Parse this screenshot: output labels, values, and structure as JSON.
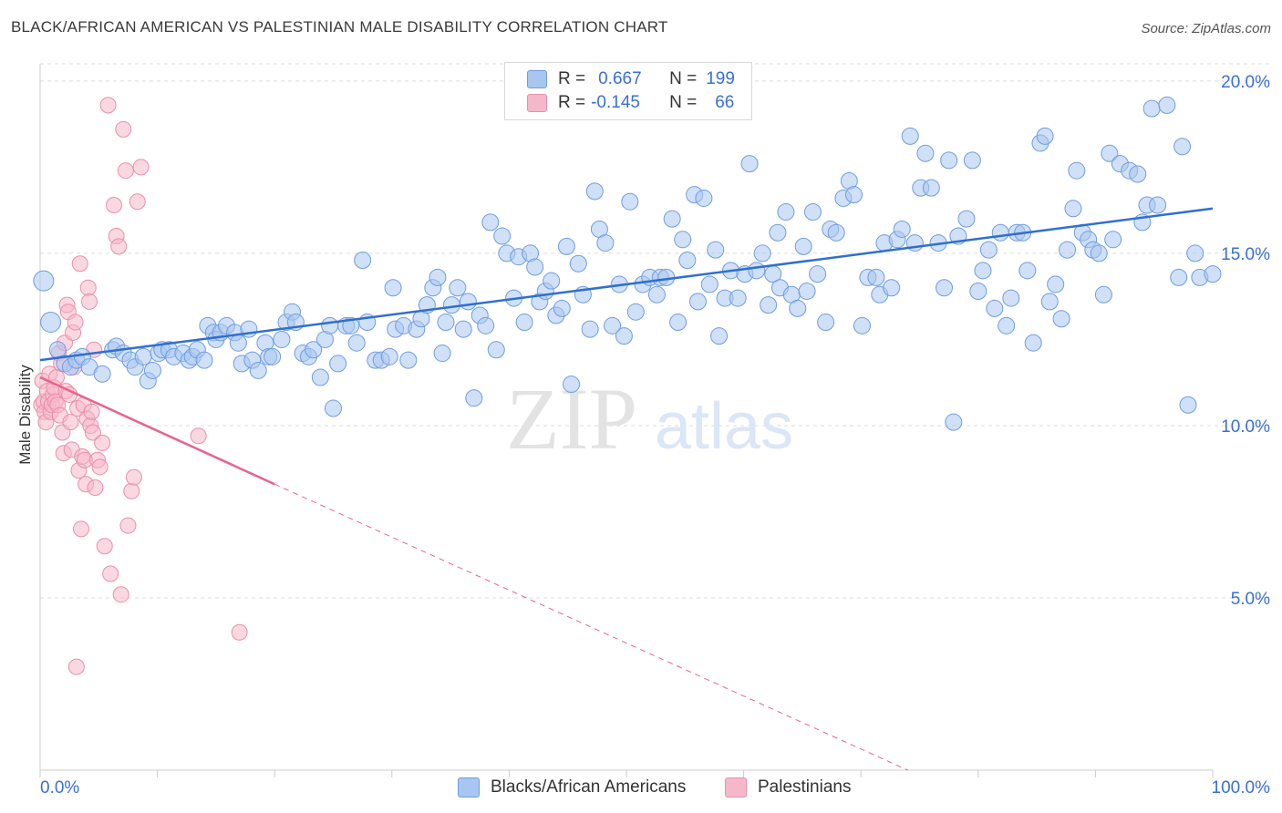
{
  "title": "BLACK/AFRICAN AMERICAN VS PALESTINIAN MALE DISABILITY CORRELATION CHART",
  "source": "Source: ZipAtlas.com",
  "watermark": {
    "zip": "ZIP",
    "atlas": "atlas"
  },
  "legend": {
    "rows": [
      {
        "r_label": "R =",
        "r_value": "0.667",
        "n_label": "N =",
        "n_value": "199",
        "color": "#a9c6f0"
      },
      {
        "r_label": "R =",
        "r_value": "-0.145",
        "n_label": "N =",
        "n_value": "66",
        "color": "#f5b8cb"
      }
    ]
  },
  "bottom_legend": [
    {
      "label": "Blacks/African Americans",
      "color": "#a9c6f0"
    },
    {
      "label": "Palestinians",
      "color": "#f5b8cb"
    }
  ],
  "colors": {
    "blue_fill": "#a9c6f0",
    "blue_stroke": "#6f9de0",
    "blue_line": "#2f6fd0",
    "pink_fill": "#f5b8cb",
    "pink_stroke": "#ea8fab",
    "pink_line": "#e8638e",
    "tick_label": "#3a6fd8",
    "grid": "#dddddd"
  },
  "chart_data": {
    "type": "scatter",
    "title": "BLACK/AFRICAN AMERICAN VS PALESTINIAN MALE DISABILITY CORRELATION CHART",
    "xlabel": "",
    "ylabel": "Male Disability",
    "xlim": [
      0,
      100
    ],
    "ylim": [
      0,
      20.5
    ],
    "x_tick_labels": [
      "0.0%",
      "100.0%"
    ],
    "y_ticks": [
      5,
      10,
      15,
      20
    ],
    "y_tick_labels": [
      "5.0%",
      "10.0%",
      "15.0%",
      "20.0%"
    ],
    "grid": true,
    "legend_position": "top-center",
    "series": [
      {
        "name": "Blacks/African Americans",
        "r": 0.667,
        "n": 199,
        "trend": {
          "x0": 0,
          "y0": 11.9,
          "x1": 100,
          "y1": 16.3
        },
        "points": [
          [
            0.3,
            14.2
          ],
          [
            0.9,
            13.0
          ],
          [
            1.5,
            12.2
          ],
          [
            2.1,
            11.8
          ],
          [
            2.6,
            11.7
          ],
          [
            3.1,
            11.9
          ],
          [
            3.6,
            12.0
          ],
          [
            4.2,
            11.7
          ],
          [
            5.3,
            11.5
          ],
          [
            6.2,
            12.2
          ],
          [
            6.5,
            12.3
          ],
          [
            7.1,
            12.1
          ],
          [
            7.7,
            11.9
          ],
          [
            8.1,
            11.7
          ],
          [
            8.8,
            12.0
          ],
          [
            9.2,
            11.3
          ],
          [
            9.6,
            11.6
          ],
          [
            10.1,
            12.1
          ],
          [
            10.4,
            12.2
          ],
          [
            11.0,
            12.2
          ],
          [
            11.4,
            12.0
          ],
          [
            12.2,
            12.1
          ],
          [
            12.7,
            11.9
          ],
          [
            13.0,
            12.0
          ],
          [
            13.4,
            12.2
          ],
          [
            14.0,
            11.9
          ],
          [
            14.3,
            12.9
          ],
          [
            14.8,
            12.7
          ],
          [
            15.0,
            12.5
          ],
          [
            15.4,
            12.7
          ],
          [
            15.9,
            12.9
          ],
          [
            16.6,
            12.7
          ],
          [
            16.9,
            12.4
          ],
          [
            17.2,
            11.8
          ],
          [
            17.8,
            12.8
          ],
          [
            18.1,
            11.9
          ],
          [
            18.6,
            11.6
          ],
          [
            19.2,
            12.4
          ],
          [
            19.5,
            12.0
          ],
          [
            19.8,
            12.0
          ],
          [
            20.6,
            12.5
          ],
          [
            21.0,
            13.0
          ],
          [
            21.5,
            13.3
          ],
          [
            21.8,
            13.0
          ],
          [
            22.4,
            12.1
          ],
          [
            22.9,
            12.0
          ],
          [
            23.3,
            12.2
          ],
          [
            23.9,
            11.4
          ],
          [
            24.3,
            12.5
          ],
          [
            24.7,
            12.9
          ],
          [
            25.0,
            10.5
          ],
          [
            25.4,
            11.8
          ],
          [
            26.1,
            12.9
          ],
          [
            26.5,
            12.9
          ],
          [
            27.0,
            12.4
          ],
          [
            27.5,
            14.8
          ],
          [
            27.9,
            13.0
          ],
          [
            28.6,
            11.9
          ],
          [
            29.1,
            11.9
          ],
          [
            29.8,
            12.0
          ],
          [
            30.1,
            14.0
          ],
          [
            30.3,
            12.8
          ],
          [
            31.0,
            12.9
          ],
          [
            31.4,
            11.9
          ],
          [
            32.1,
            12.8
          ],
          [
            32.5,
            13.1
          ],
          [
            33.0,
            13.5
          ],
          [
            33.5,
            14.0
          ],
          [
            33.9,
            14.3
          ],
          [
            34.3,
            12.1
          ],
          [
            34.6,
            13.0
          ],
          [
            35.1,
            13.5
          ],
          [
            35.6,
            14.0
          ],
          [
            36.1,
            12.8
          ],
          [
            36.5,
            13.6
          ],
          [
            37.0,
            10.8
          ],
          [
            37.5,
            13.2
          ],
          [
            38.0,
            12.9
          ],
          [
            38.4,
            15.9
          ],
          [
            38.9,
            12.2
          ],
          [
            39.4,
            15.5
          ],
          [
            39.8,
            15.0
          ],
          [
            40.4,
            13.7
          ],
          [
            40.8,
            14.9
          ],
          [
            41.3,
            13.0
          ],
          [
            41.8,
            15.0
          ],
          [
            42.2,
            14.6
          ],
          [
            42.6,
            13.6
          ],
          [
            43.1,
            13.9
          ],
          [
            43.6,
            14.2
          ],
          [
            44.0,
            13.2
          ],
          [
            44.5,
            13.4
          ],
          [
            44.9,
            15.2
          ],
          [
            45.3,
            11.2
          ],
          [
            45.9,
            14.7
          ],
          [
            46.3,
            13.8
          ],
          [
            46.9,
            12.8
          ],
          [
            47.3,
            16.8
          ],
          [
            47.7,
            15.7
          ],
          [
            48.2,
            15.3
          ],
          [
            48.8,
            12.9
          ],
          [
            49.4,
            14.1
          ],
          [
            49.8,
            12.6
          ],
          [
            50.3,
            16.5
          ],
          [
            50.8,
            13.3
          ],
          [
            51.4,
            14.1
          ],
          [
            52.0,
            14.3
          ],
          [
            52.6,
            13.8
          ],
          [
            52.9,
            14.3
          ],
          [
            53.4,
            14.3
          ],
          [
            53.9,
            16.0
          ],
          [
            54.4,
            13.0
          ],
          [
            54.8,
            15.4
          ],
          [
            55.2,
            14.8
          ],
          [
            55.8,
            16.7
          ],
          [
            56.1,
            13.6
          ],
          [
            56.6,
            16.6
          ],
          [
            57.1,
            14.1
          ],
          [
            57.6,
            15.1
          ],
          [
            57.9,
            12.6
          ],
          [
            58.4,
            13.7
          ],
          [
            58.9,
            14.5
          ],
          [
            59.5,
            13.7
          ],
          [
            60.1,
            14.4
          ],
          [
            60.5,
            17.6
          ],
          [
            61.1,
            14.5
          ],
          [
            61.6,
            15.0
          ],
          [
            62.1,
            13.5
          ],
          [
            62.5,
            14.4
          ],
          [
            62.9,
            15.6
          ],
          [
            63.1,
            14.0
          ],
          [
            63.6,
            16.2
          ],
          [
            64.1,
            13.8
          ],
          [
            64.6,
            13.4
          ],
          [
            65.1,
            15.2
          ],
          [
            65.4,
            13.9
          ],
          [
            65.9,
            16.2
          ],
          [
            66.3,
            14.4
          ],
          [
            67.0,
            13.0
          ],
          [
            67.4,
            15.7
          ],
          [
            67.9,
            15.6
          ],
          [
            68.5,
            16.6
          ],
          [
            69.0,
            17.1
          ],
          [
            69.4,
            16.7
          ],
          [
            70.1,
            12.9
          ],
          [
            70.6,
            14.3
          ],
          [
            71.3,
            14.3
          ],
          [
            71.6,
            13.8
          ],
          [
            72.0,
            15.3
          ],
          [
            72.6,
            14.0
          ],
          [
            73.1,
            15.4
          ],
          [
            73.5,
            15.7
          ],
          [
            74.2,
            18.4
          ],
          [
            74.6,
            15.3
          ],
          [
            75.1,
            16.9
          ],
          [
            75.5,
            17.9
          ],
          [
            76.0,
            16.9
          ],
          [
            76.6,
            15.3
          ],
          [
            77.1,
            14.0
          ],
          [
            77.5,
            17.7
          ],
          [
            77.9,
            10.1
          ],
          [
            78.3,
            15.5
          ],
          [
            79.0,
            16.0
          ],
          [
            79.5,
            17.7
          ],
          [
            80.0,
            13.9
          ],
          [
            80.4,
            14.5
          ],
          [
            80.9,
            15.1
          ],
          [
            81.4,
            13.4
          ],
          [
            81.9,
            15.6
          ],
          [
            82.4,
            12.9
          ],
          [
            82.8,
            13.7
          ],
          [
            83.3,
            15.6
          ],
          [
            83.8,
            15.6
          ],
          [
            84.2,
            14.5
          ],
          [
            84.7,
            12.4
          ],
          [
            85.3,
            18.2
          ],
          [
            85.7,
            18.4
          ],
          [
            86.1,
            13.6
          ],
          [
            86.6,
            14.1
          ],
          [
            87.1,
            13.1
          ],
          [
            87.6,
            15.1
          ],
          [
            88.1,
            16.3
          ],
          [
            88.4,
            17.4
          ],
          [
            88.9,
            15.6
          ],
          [
            89.4,
            15.4
          ],
          [
            89.8,
            15.1
          ],
          [
            90.3,
            15.0
          ],
          [
            90.7,
            13.8
          ],
          [
            91.2,
            17.9
          ],
          [
            91.5,
            15.4
          ],
          [
            92.1,
            17.6
          ],
          [
            92.9,
            17.4
          ],
          [
            93.6,
            17.3
          ],
          [
            94.0,
            15.9
          ],
          [
            94.4,
            16.4
          ],
          [
            94.8,
            19.2
          ],
          [
            95.3,
            16.4
          ],
          [
            96.1,
            19.3
          ],
          [
            97.1,
            14.3
          ],
          [
            97.4,
            18.1
          ],
          [
            97.9,
            10.6
          ],
          [
            98.5,
            15.0
          ],
          [
            98.9,
            14.3
          ],
          [
            100.0,
            14.4
          ]
        ]
      },
      {
        "name": "Palestinians",
        "r": -0.145,
        "n": 66,
        "trend": {
          "x0": 0,
          "y0": 11.4,
          "x1": 20,
          "y1": 8.3,
          "dashed_to_x": 74,
          "dashed_to_y": 0.0
        },
        "points": [
          [
            0.1,
            10.6
          ],
          [
            0.2,
            11.3
          ],
          [
            0.3,
            10.7
          ],
          [
            0.4,
            10.4
          ],
          [
            0.5,
            10.1
          ],
          [
            0.6,
            11.0
          ],
          [
            0.7,
            10.7
          ],
          [
            0.8,
            11.5
          ],
          [
            0.9,
            10.4
          ],
          [
            1.0,
            10.6
          ],
          [
            1.1,
            10.9
          ],
          [
            1.2,
            11.1
          ],
          [
            1.3,
            10.7
          ],
          [
            1.4,
            11.4
          ],
          [
            1.5,
            10.6
          ],
          [
            1.6,
            12.1
          ],
          [
            1.7,
            10.3
          ],
          [
            1.8,
            11.8
          ],
          [
            1.9,
            9.8
          ],
          [
            2.0,
            9.2
          ],
          [
            2.1,
            12.4
          ],
          [
            2.2,
            11.0
          ],
          [
            2.3,
            13.5
          ],
          [
            2.4,
            13.3
          ],
          [
            2.5,
            10.9
          ],
          [
            2.6,
            10.1
          ],
          [
            2.7,
            9.3
          ],
          [
            2.8,
            12.7
          ],
          [
            2.9,
            11.7
          ],
          [
            3.0,
            13.0
          ],
          [
            3.1,
            3.0
          ],
          [
            3.2,
            10.5
          ],
          [
            3.3,
            8.7
          ],
          [
            3.4,
            14.7
          ],
          [
            3.5,
            7.0
          ],
          [
            3.6,
            9.1
          ],
          [
            3.7,
            10.6
          ],
          [
            3.8,
            9.0
          ],
          [
            3.9,
            8.3
          ],
          [
            4.0,
            10.2
          ],
          [
            4.1,
            14.0
          ],
          [
            4.2,
            13.6
          ],
          [
            4.3,
            10.0
          ],
          [
            4.4,
            10.4
          ],
          [
            4.5,
            9.8
          ],
          [
            4.6,
            12.2
          ],
          [
            4.7,
            8.2
          ],
          [
            4.9,
            9.0
          ],
          [
            5.1,
            8.8
          ],
          [
            5.3,
            9.5
          ],
          [
            5.5,
            6.5
          ],
          [
            5.8,
            19.3
          ],
          [
            6.0,
            5.7
          ],
          [
            6.3,
            16.4
          ],
          [
            6.5,
            15.5
          ],
          [
            6.7,
            15.2
          ],
          [
            6.9,
            5.1
          ],
          [
            7.1,
            18.6
          ],
          [
            7.3,
            17.4
          ],
          [
            7.5,
            7.1
          ],
          [
            7.8,
            8.1
          ],
          [
            8.0,
            8.5
          ],
          [
            8.3,
            16.5
          ],
          [
            8.6,
            17.5
          ],
          [
            13.5,
            9.7
          ],
          [
            17.0,
            4.0
          ]
        ]
      }
    ]
  }
}
